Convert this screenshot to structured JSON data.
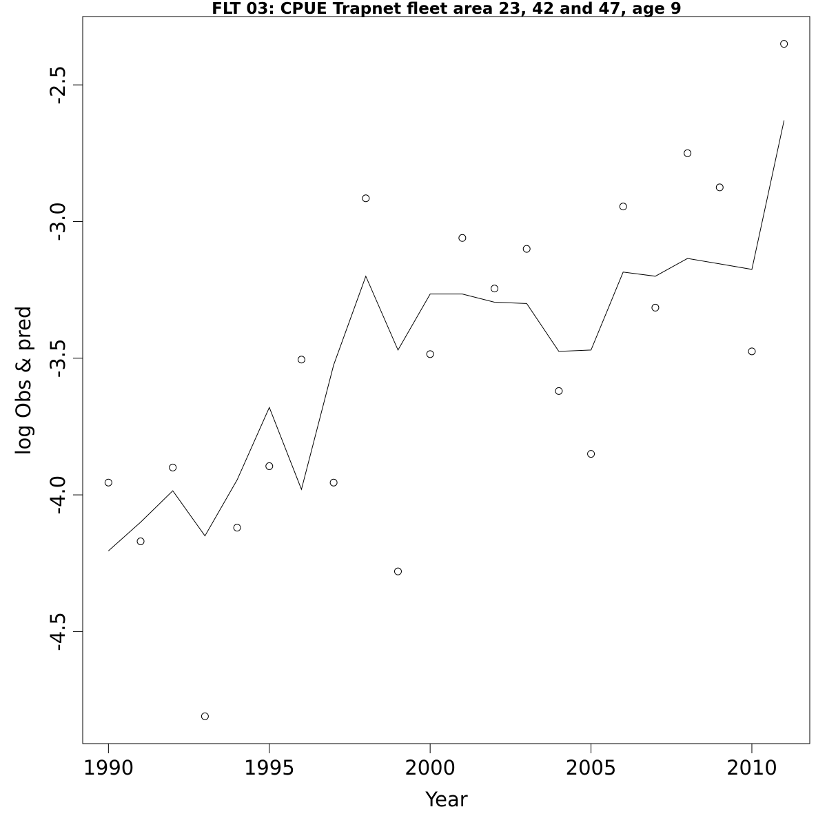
{
  "chart_data": {
    "type": "scatter",
    "title": "FLT 03: CPUE Trapnet fleet area 23, 42 and 47, age 9",
    "xlabel": "Year",
    "ylabel": "log Obs & pred",
    "xlim": [
      1989.2,
      2011.8
    ],
    "ylim": [
      -4.91,
      -2.25
    ],
    "x_ticks": [
      1990,
      1995,
      2000,
      2005,
      2010
    ],
    "x_tick_labels": [
      "1990",
      "1995",
      "2000",
      "2005",
      "2010"
    ],
    "y_ticks": [
      -4.5,
      -4.0,
      -3.5,
      -3.0,
      -2.5
    ],
    "y_tick_labels": [
      "-4.5",
      "-4.0",
      "-3.5",
      "-3.0",
      "-2.5"
    ],
    "grid": false,
    "legend": null,
    "series": [
      {
        "type": "scatter",
        "marker": "open-circle",
        "x": [
          1990,
          1991,
          1992,
          1993,
          1994,
          1995,
          1996,
          1997,
          1998,
          1999,
          2000,
          2001,
          2002,
          2003,
          2004,
          2005,
          2006,
          2007,
          2008,
          2009,
          2010,
          2011
        ],
        "y": [
          -3.955,
          -4.17,
          -3.9,
          -4.81,
          -4.12,
          -3.895,
          -3.505,
          -3.955,
          -2.915,
          -4.28,
          -3.485,
          -3.06,
          -3.245,
          -3.1,
          -3.62,
          -3.85,
          -2.945,
          -3.315,
          -2.75,
          -2.875,
          -3.475,
          -2.35
        ]
      },
      {
        "type": "line",
        "x": [
          1990,
          1991,
          1992,
          1993,
          1994,
          1995,
          1996,
          1997,
          1998,
          1999,
          2000,
          2001,
          2002,
          2003,
          2004,
          2005,
          2006,
          2007,
          2008,
          2009,
          2010,
          2011
        ],
        "y": [
          -4.205,
          -4.1,
          -3.985,
          -4.15,
          -3.945,
          -3.68,
          -3.98,
          -3.525,
          -3.2,
          -3.47,
          -3.265,
          -3.265,
          -3.295,
          -3.3,
          -3.475,
          -3.47,
          -3.185,
          -3.2,
          -3.135,
          -3.155,
          -3.175,
          -2.63
        ]
      }
    ]
  }
}
